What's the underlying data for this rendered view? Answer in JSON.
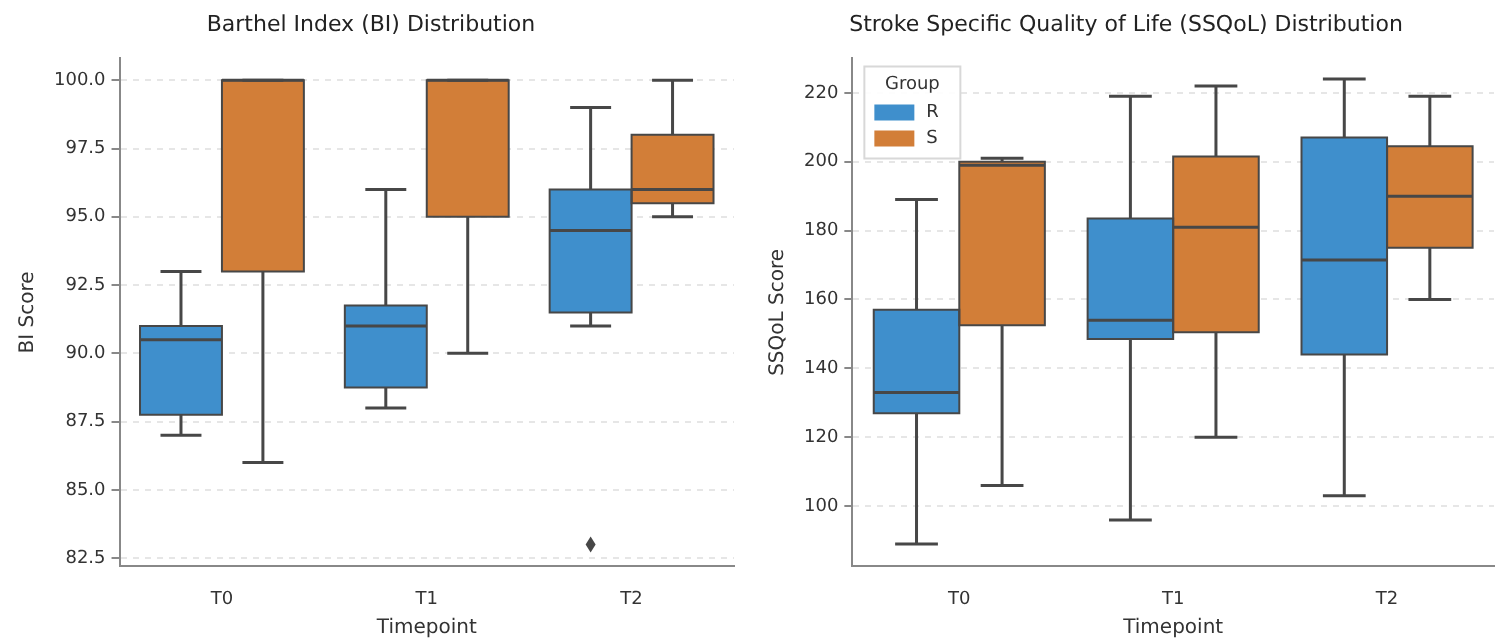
{
  "chart_data": [
    {
      "type": "box",
      "title": "Barthel Index (BI) Distribution",
      "xlabel": "Timepoint",
      "ylabel": "BI Score",
      "categories": [
        "T0",
        "T1",
        "T2"
      ],
      "series": [
        {
          "color": "#3f8fcc",
          "boxes": [
            {
              "low": 87,
              "q1": 87.75,
              "median": 90.5,
              "q3": 91,
              "high": 93
            },
            {
              "low": 88,
              "q1": 88.75,
              "median": 91,
              "q3": 91.75,
              "high": 96
            },
            {
              "low": 91,
              "q1": 91.5,
              "median": 94.5,
              "q3": 96,
              "high": 99,
              "outliers": [
                83
              ]
            }
          ]
        },
        {
          "color": "#d27e38",
          "boxes": [
            {
              "low": 86,
              "q1": 93,
              "median": 100,
              "q3": 100,
              "high": 100
            },
            {
              "low": 90,
              "q1": 95,
              "median": 100,
              "q3": 100,
              "high": 100
            },
            {
              "low": 95,
              "q1": 95.5,
              "median": 96,
              "q3": 98,
              "high": 100
            }
          ]
        }
      ],
      "ylim": [
        82.2,
        100.8
      ],
      "yticks": [
        {
          "value": 82.5,
          "label": "82.5"
        },
        {
          "value": 85,
          "label": "85.0"
        },
        {
          "value": 87.5,
          "label": "87.5"
        },
        {
          "value": 90,
          "label": "90.0"
        },
        {
          "value": 92.5,
          "label": "92.5"
        },
        {
          "value": 95,
          "label": "95.0"
        },
        {
          "value": 97.5,
          "label": "97.5"
        },
        {
          "value": 100,
          "label": "100.0"
        }
      ],
      "grid": "y",
      "legend": false
    },
    {
      "type": "box",
      "title": "Stroke Specific Quality of Life (SSQoL) Distribution",
      "xlabel": "Timepoint",
      "ylabel": "SSQoL Score",
      "legend_title": "Group",
      "categories": [
        "T0",
        "T1",
        "T2"
      ],
      "series": [
        {
          "name": "R",
          "color": "#3f8fcc",
          "boxes": [
            {
              "low": 89,
              "q1": 127,
              "median": 133,
              "q3": 157,
              "high": 189
            },
            {
              "low": 96,
              "q1": 148.5,
              "median": 154,
              "q3": 183.5,
              "high": 219
            },
            {
              "low": 103,
              "q1": 144,
              "median": 171.5,
              "q3": 207,
              "high": 224
            }
          ]
        },
        {
          "name": "S",
          "color": "#d27e38",
          "boxes": [
            {
              "low": 106,
              "q1": 152.5,
              "median": 199,
              "q3": 200,
              "high": 201
            },
            {
              "low": 120,
              "q1": 150.5,
              "median": 181,
              "q3": 201.5,
              "high": 222
            },
            {
              "low": 160,
              "q1": 175,
              "median": 190,
              "q3": 204.5,
              "high": 219
            }
          ]
        }
      ],
      "ylim": [
        82.5,
        230
      ],
      "yticks": [
        100,
        120,
        140,
        160,
        180,
        200,
        220
      ],
      "grid": "y",
      "legend": "top left"
    }
  ]
}
